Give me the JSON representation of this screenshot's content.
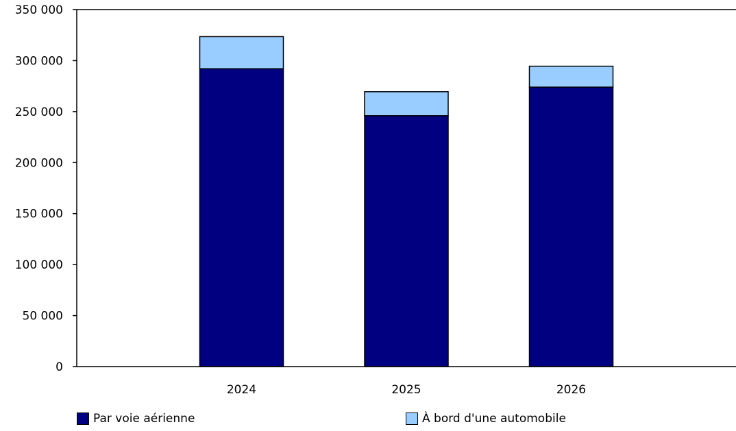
{
  "chart_data": {
    "type": "bar",
    "stacked": true,
    "categories": [
      "2024",
      "2025",
      "2026"
    ],
    "series": [
      {
        "name": "Par voie aérienne",
        "color": "#000080",
        "values": [
          292000,
          246000,
          274000
        ]
      },
      {
        "name": "À bord d'une automobile",
        "color": "#99ccff",
        "values": [
          31500,
          23500,
          20500
        ]
      }
    ],
    "ylim": [
      0,
      350000
    ],
    "yticks": [
      0,
      50000,
      100000,
      150000,
      200000,
      250000,
      300000,
      350000
    ],
    "ytick_labels": [
      "0",
      "50 000",
      "100 000",
      "150 000",
      "200 000",
      "250 000",
      "300 000",
      "350 000"
    ],
    "grid": false,
    "legend_position": "bottom",
    "title": "",
    "xlabel": "",
    "ylabel": ""
  }
}
